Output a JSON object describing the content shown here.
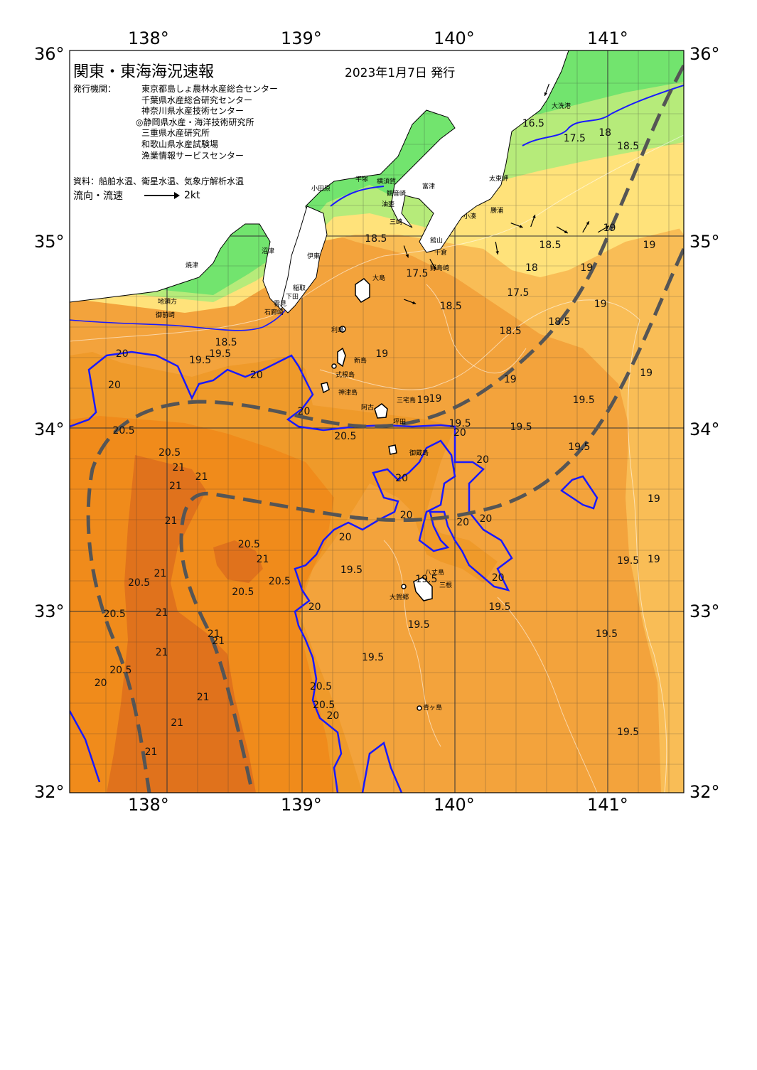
{
  "header": {
    "title": "関東・東海海況速報",
    "date": "2023年1月7日 発行",
    "issuer_label": "発行機関：",
    "issuers": [
      "東京都島しょ農林水産総合センター",
      "千葉県水産総合研究センター",
      "神奈川県水産技術センター",
      "◎静岡県水産・海洋技術研究所",
      "三重県水産研究所",
      "和歌山県水産試験場",
      "漁業情報サービスセンター"
    ],
    "sources": "資料：船舶水温、衛星水温、気象庁解析水温",
    "legend_label": "流向・流速",
    "legend_speed": "2kt"
  },
  "axes": {
    "lon_top": [
      "138°",
      "139°",
      "140°",
      "141°"
    ],
    "lon_bottom": [
      "138°",
      "139°",
      "140°",
      "141°"
    ],
    "lat_left": [
      "36°",
      "35°",
      "34°",
      "33°",
      "32°"
    ],
    "lat_right": [
      "36°",
      "35°",
      "34°",
      "33°",
      "32°"
    ]
  },
  "colors": {
    "land": "#ffffff",
    "coast_green": "#72e46e",
    "t17": "#b6eb7a",
    "t18": "#ffe27a",
    "t19": "#f9bd56",
    "t195": "#f3a33c",
    "t20": "#ef9a2a",
    "t205": "#f08b1b",
    "t21": "#e0721c",
    "isotherm_20": "#1a1aff",
    "kuroshio_axis": "#555555",
    "grid": "#333333"
  },
  "places": [
    {
      "id": "oarai",
      "text": "大洗港"
    },
    {
      "id": "taitomisaki",
      "text": "太東岬"
    },
    {
      "id": "katsuura",
      "text": "勝浦"
    },
    {
      "id": "kominato",
      "text": "小湊"
    },
    {
      "id": "tateyama",
      "text": "館山"
    },
    {
      "id": "chikura",
      "text": "千倉"
    },
    {
      "id": "nojimazaki",
      "text": "野島崎"
    },
    {
      "id": "futtsu",
      "text": "富津"
    },
    {
      "id": "kannonzaki",
      "text": "観音崎"
    },
    {
      "id": "misaki",
      "text": "三崎"
    },
    {
      "id": "aburatsubo",
      "text": "油壺"
    },
    {
      "id": "hiratsuka",
      "text": "平塚"
    },
    {
      "id": "yokosuka",
      "text": "横須賀"
    },
    {
      "id": "odawara",
      "text": "小田原"
    },
    {
      "id": "numazu",
      "text": "沼津"
    },
    {
      "id": "ito",
      "text": "伊東"
    },
    {
      "id": "yaizu",
      "text": "焼津"
    },
    {
      "id": "inatori",
      "text": "稲取"
    },
    {
      "id": "shimoda",
      "text": "下田"
    },
    {
      "id": "mera",
      "text": "雲見"
    },
    {
      "id": "irozaki",
      "text": "石廊崎"
    },
    {
      "id": "omaezaki",
      "text": "御前崎"
    },
    {
      "id": "jitokata",
      "text": "地頭方"
    },
    {
      "id": "oshima",
      "text": "大島"
    },
    {
      "id": "toshima",
      "text": "利島"
    },
    {
      "id": "niijima",
      "text": "新島"
    },
    {
      "id": "shikinejima",
      "text": "式根島"
    },
    {
      "id": "kozushima",
      "text": "神津島"
    },
    {
      "id": "miyakejima",
      "text": "三宅島"
    },
    {
      "id": "ako",
      "text": "阿古"
    },
    {
      "id": "tsubota",
      "text": "坪田"
    },
    {
      "id": "mikurajima",
      "text": "御蔵島"
    },
    {
      "id": "hachijojima",
      "text": "八丈島"
    },
    {
      "id": "mitsune",
      "text": "三根"
    },
    {
      "id": "okago",
      "text": "大賀郷"
    },
    {
      "id": "aogashima",
      "text": "青ヶ島"
    }
  ],
  "isotherm_labels": [
    {
      "text": "16.5",
      "lon": 140.38,
      "lat": 35.6
    },
    {
      "text": "17.5",
      "lon": 140.65,
      "lat": 35.52
    },
    {
      "text": "18",
      "lon": 140.88,
      "lat": 35.55
    },
    {
      "text": "18.5",
      "lon": 141.0,
      "lat": 35.48
    },
    {
      "text": "18.5",
      "lon": 140.49,
      "lat": 34.95
    },
    {
      "text": "18",
      "lon": 140.4,
      "lat": 34.83
    },
    {
      "text": "19",
      "lon": 140.76,
      "lat": 34.83
    },
    {
      "text": "19",
      "lon": 141.17,
      "lat": 34.95
    },
    {
      "text": "19",
      "lon": 140.85,
      "lat": 34.64
    },
    {
      "text": "18.5",
      "lon": 140.55,
      "lat": 34.55
    },
    {
      "text": "18.5",
      "lon": 140.23,
      "lat": 34.5
    },
    {
      "text": "17.5",
      "lon": 140.28,
      "lat": 34.7
    },
    {
      "text": "18.5",
      "lon": 139.84,
      "lat": 34.63
    },
    {
      "text": "17.5",
      "lon": 139.62,
      "lat": 34.8
    },
    {
      "text": "18.5",
      "lon": 139.35,
      "lat": 34.98
    },
    {
      "text": "19",
      "lon": 139.42,
      "lat": 34.38
    },
    {
      "text": "19",
      "lon": 139.77,
      "lat": 34.15
    },
    {
      "text": "19",
      "lon": 140.26,
      "lat": 34.25
    },
    {
      "text": "19.5",
      "lon": 140.71,
      "lat": 34.14
    },
    {
      "text": "19",
      "lon": 141.15,
      "lat": 34.28
    },
    {
      "text": "19.5",
      "lon": 139.9,
      "lat": 34.02
    },
    {
      "text": "20",
      "lon": 139.93,
      "lat": 33.97
    },
    {
      "text": "19.5",
      "lon": 140.3,
      "lat": 34.0
    },
    {
      "text": "19.5",
      "lon": 140.68,
      "lat": 33.89
    },
    {
      "text": "20",
      "lon": 140.08,
      "lat": 33.82
    },
    {
      "text": "19",
      "lon": 141.2,
      "lat": 33.61
    },
    {
      "text": "20",
      "lon": 139.58,
      "lat": 33.52
    },
    {
      "text": "20",
      "lon": 139.95,
      "lat": 33.48
    },
    {
      "text": "20",
      "lon": 140.1,
      "lat": 33.5
    },
    {
      "text": "20",
      "lon": 139.18,
      "lat": 33.4
    },
    {
      "text": "19.5",
      "lon": 139.19,
      "lat": 33.22
    },
    {
      "text": "19.5",
      "lon": 139.68,
      "lat": 33.17
    },
    {
      "text": "20",
      "lon": 140.18,
      "lat": 33.18
    },
    {
      "text": "19.5",
      "lon": 141.0,
      "lat": 33.27
    },
    {
      "text": "19",
      "lon": 141.2,
      "lat": 33.28
    },
    {
      "text": "19.5",
      "lon": 140.16,
      "lat": 33.02
    },
    {
      "text": "19.5",
      "lon": 139.63,
      "lat": 32.92
    },
    {
      "text": "19.5",
      "lon": 140.86,
      "lat": 32.87
    },
    {
      "text": "19.5",
      "lon": 139.33,
      "lat": 32.74
    },
    {
      "text": "19.5",
      "lon": 141.0,
      "lat": 32.33
    },
    {
      "text": "20",
      "lon": 138.98,
      "lat": 33.02
    },
    {
      "text": "20.5",
      "lon": 138.99,
      "lat": 32.58
    },
    {
      "text": "20.5",
      "lon": 139.01,
      "lat": 32.48
    },
    {
      "text": "20",
      "lon": 139.1,
      "lat": 32.42
    },
    {
      "text": "20.5",
      "lon": 138.52,
      "lat": 33.36
    },
    {
      "text": "21",
      "lon": 138.64,
      "lat": 33.28
    },
    {
      "text": "20.5",
      "lon": 138.72,
      "lat": 33.16
    },
    {
      "text": "20.5",
      "lon": 138.48,
      "lat": 33.1
    },
    {
      "text": "20.5",
      "lon": 138.0,
      "lat": 33.86
    },
    {
      "text": "21",
      "lon": 138.09,
      "lat": 33.78
    },
    {
      "text": "21",
      "lon": 138.24,
      "lat": 33.73
    },
    {
      "text": "21",
      "lon": 138.07,
      "lat": 33.68
    },
    {
      "text": "21",
      "lon": 138.04,
      "lat": 33.49
    },
    {
      "text": "21",
      "lon": 137.97,
      "lat": 33.2
    },
    {
      "text": "20.5",
      "lon": 137.8,
      "lat": 33.15
    },
    {
      "text": "21",
      "lon": 137.98,
      "lat": 32.99
    },
    {
      "text": "20.5",
      "lon": 137.64,
      "lat": 32.98
    },
    {
      "text": "21",
      "lon": 138.32,
      "lat": 32.87
    },
    {
      "text": "21",
      "lon": 138.35,
      "lat": 32.83
    },
    {
      "text": "21",
      "lon": 137.98,
      "lat": 32.77
    },
    {
      "text": "20.5",
      "lon": 137.68,
      "lat": 32.67
    },
    {
      "text": "20",
      "lon": 137.58,
      "lat": 32.6
    },
    {
      "text": "21",
      "lon": 138.25,
      "lat": 32.52
    },
    {
      "text": "21",
      "lon": 138.08,
      "lat": 32.38
    },
    {
      "text": "21",
      "lon": 137.91,
      "lat": 32.22
    },
    {
      "text": "20",
      "lon": 137.72,
      "lat": 34.38
    },
    {
      "text": "20",
      "lon": 137.67,
      "lat": 34.22
    },
    {
      "text": "19.5",
      "lon": 138.2,
      "lat": 34.35
    },
    {
      "text": "19.5",
      "lon": 138.33,
      "lat": 34.38
    },
    {
      "text": "18.5",
      "lon": 138.37,
      "lat": 34.44
    },
    {
      "text": "20",
      "lon": 138.6,
      "lat": 34.27
    },
    {
      "text": "20",
      "lon": 138.91,
      "lat": 34.08
    },
    {
      "text": "20.5",
      "lon": 137.7,
      "lat": 33.98
    },
    {
      "text": "20.5",
      "lon": 139.15,
      "lat": 33.95
    },
    {
      "text": "20",
      "lon": 139.55,
      "lat": 33.72
    },
    {
      "text": "19",
      "lon": 140.91,
      "lat": 35.04
    },
    {
      "text": "19",
      "lon": 139.69,
      "lat": 34.14
    }
  ],
  "current_arrows": [
    {
      "lon": 140.5,
      "lat": 35.82,
      "dir": 200
    },
    {
      "lon": 140.25,
      "lat": 35.07,
      "dir": 110
    },
    {
      "lon": 140.38,
      "lat": 35.05,
      "dir": 20
    },
    {
      "lon": 140.55,
      "lat": 35.05,
      "dir": 120
    },
    {
      "lon": 140.72,
      "lat": 35.02,
      "dir": 30
    },
    {
      "lon": 140.82,
      "lat": 35.02,
      "dir": 60
    },
    {
      "lon": 140.15,
      "lat": 34.97,
      "dir": 170
    },
    {
      "lon": 139.55,
      "lat": 34.95,
      "dir": 160
    },
    {
      "lon": 139.55,
      "lat": 34.67,
      "dir": 110
    },
    {
      "lon": 139.72,
      "lat": 34.88,
      "dir": 150
    }
  ]
}
